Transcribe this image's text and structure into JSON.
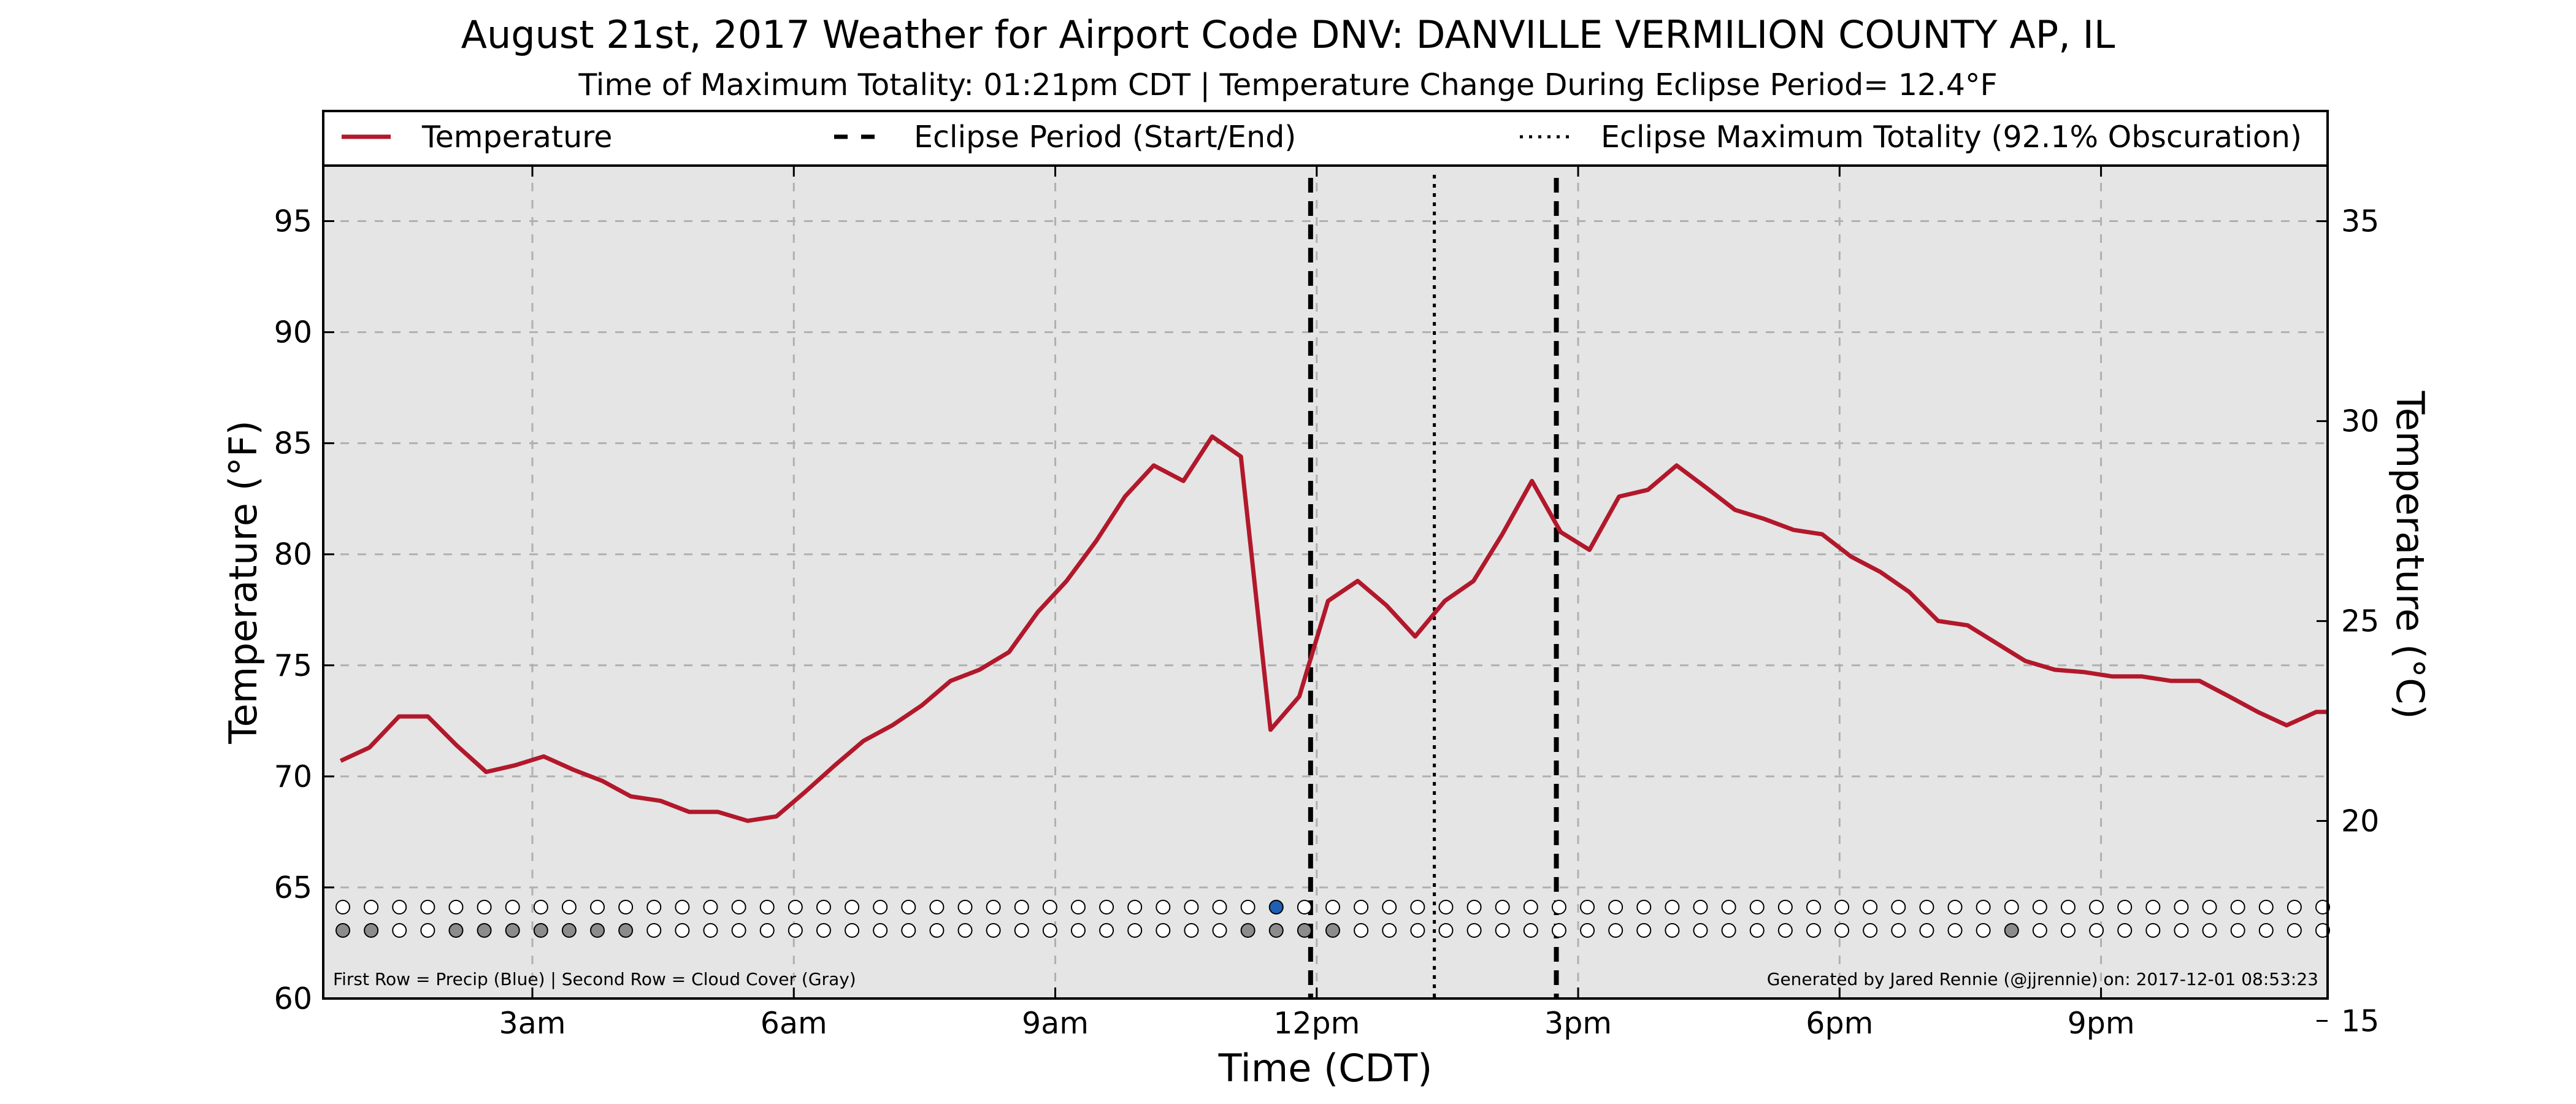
{
  "chart_data": {
    "type": "line",
    "title": "August 21st, 2017 Weather for Airport Code DNV: DANVILLE VERMILION COUNTY AP, IL",
    "subtitle": "Time of Maximum Totality: 01:21pm CDT | Temperature Change During Eclipse Period= 12.4°F",
    "xlabel": "Time (CDT)",
    "ylabel": "Temperature (°F)",
    "ylabel_right": "Temperature (°C)",
    "x_unit": "hours since midnight CDT",
    "xlim": [
      0.6,
      23.6
    ],
    "ylim": [
      60,
      97.5
    ],
    "ylim_right": [
      15.56,
      36.39
    ],
    "x_ticks": [
      {
        "x": 3,
        "label": "3am"
      },
      {
        "x": 6,
        "label": "6am"
      },
      {
        "x": 9,
        "label": "9am"
      },
      {
        "x": 12,
        "label": "12pm"
      },
      {
        "x": 15,
        "label": "3pm"
      },
      {
        "x": 18,
        "label": "6pm"
      },
      {
        "x": 21,
        "label": "9pm"
      }
    ],
    "y_ticks": [
      60,
      65,
      70,
      75,
      80,
      85,
      90,
      95
    ],
    "y_ticks_right": [
      15,
      20,
      25,
      30,
      35
    ],
    "grid": true,
    "legend": {
      "placement": "top",
      "entries": [
        {
          "label": "Temperature",
          "style": "solid",
          "color": "#b2182b"
        },
        {
          "label": "Eclipse Period (Start/End)",
          "style": "dashed",
          "color": "#000000"
        },
        {
          "label": "Eclipse Maximum Totality (92.1% Obscuration)",
          "style": "dotted",
          "color": "#000000"
        }
      ]
    },
    "series": [
      {
        "name": "Temperature",
        "color": "#b2182b",
        "x": [
          0.8,
          1.13,
          1.47,
          1.8,
          2.13,
          2.47,
          2.8,
          3.13,
          3.47,
          3.8,
          4.13,
          4.47,
          4.8,
          5.13,
          5.47,
          5.8,
          6.13,
          6.47,
          6.8,
          7.13,
          7.47,
          7.8,
          8.13,
          8.47,
          8.8,
          9.13,
          9.47,
          9.8,
          10.13,
          10.47,
          10.8,
          11.13,
          11.47,
          11.8,
          12.13,
          12.47,
          12.8,
          13.13,
          13.47,
          13.8,
          14.13,
          14.47,
          14.8,
          15.13,
          15.47,
          15.8,
          16.13,
          16.47,
          16.8,
          17.13,
          17.47,
          17.8,
          18.13,
          18.47,
          18.8,
          19.13,
          19.47,
          19.8,
          20.13,
          20.47,
          20.8,
          21.13,
          21.47,
          21.8,
          22.13,
          22.47,
          22.8,
          23.13,
          23.47,
          23.6
        ],
        "y": [
          70.7,
          71.3,
          72.7,
          72.7,
          71.4,
          70.2,
          70.5,
          70.9,
          70.3,
          69.8,
          69.1,
          68.9,
          68.4,
          68.4,
          68.0,
          68.2,
          69.3,
          70.5,
          71.6,
          72.3,
          73.2,
          74.3,
          74.8,
          75.6,
          77.4,
          78.8,
          80.6,
          82.6,
          84.0,
          83.3,
          85.3,
          84.4,
          72.1,
          73.6,
          77.9,
          78.8,
          77.7,
          76.3,
          77.9,
          78.8,
          80.9,
          83.3,
          81.0,
          80.2,
          82.6,
          82.9,
          84.0,
          83.0,
          82.0,
          81.6,
          81.1,
          80.9,
          79.9,
          79.2,
          78.3,
          77.0,
          76.8,
          76.0,
          75.2,
          74.8,
          74.7,
          74.5,
          74.5,
          74.3,
          74.3,
          73.6,
          72.9,
          72.3,
          72.9,
          72.9
        ]
      }
    ],
    "eclipse_start": 11.93,
    "eclipse_max": 13.35,
    "eclipse_end": 14.75,
    "precip_row": [
      0,
      0,
      0,
      0,
      0,
      0,
      0,
      0,
      0,
      0,
      0,
      0,
      0,
      0,
      0,
      0,
      0,
      0,
      0,
      0,
      0,
      0,
      0,
      0,
      0,
      0,
      0,
      0,
      0,
      0,
      0,
      0,
      0,
      1,
      0,
      0,
      0,
      0,
      0,
      0,
      0,
      0,
      0,
      0,
      0,
      0,
      0,
      0,
      0,
      0,
      0,
      0,
      0,
      0,
      0,
      0,
      0,
      0,
      0,
      0,
      0,
      0,
      0,
      0,
      0,
      0,
      0,
      0,
      0,
      0,
      0
    ],
    "cloud_row": [
      1,
      1,
      0,
      0,
      1,
      1,
      1,
      1,
      1,
      1,
      1,
      0,
      0,
      0,
      0,
      0,
      0,
      0,
      0,
      0,
      0,
      0,
      0,
      0,
      0,
      0,
      0,
      0,
      0,
      0,
      0,
      0,
      1,
      1,
      1,
      1,
      0,
      0,
      0,
      0,
      0,
      0,
      0,
      0,
      0,
      0,
      0,
      0,
      0,
      0,
      0,
      0,
      0,
      0,
      0,
      0,
      0,
      0,
      0,
      1,
      0,
      0,
      0,
      0,
      0,
      0,
      0,
      0,
      0,
      0,
      0
    ],
    "marker_colors": {
      "precip": "#1f5fb4",
      "cloud": "#8c8c8c",
      "empty": "#ffffff"
    },
    "annotations": {
      "footer_left": "First Row = Precip (Blue) | Second Row = Cloud Cover (Gray)",
      "footer_right": "Generated by Jared Rennie (@jjrennie) on: 2017-12-01 08:53:23"
    },
    "colors": {
      "plot_background": "#e5e5e5",
      "grid": "#b0b0b0"
    }
  }
}
